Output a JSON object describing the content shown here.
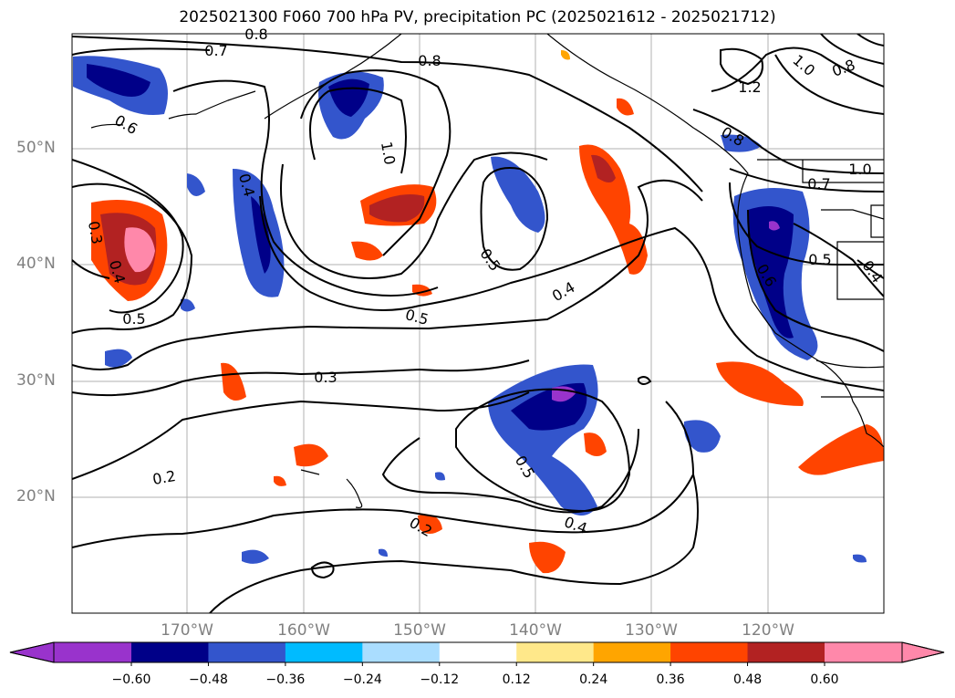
{
  "title": "2025021300 F060 700 hPa PV, precipitation PC (2025021612 - 2025021712)",
  "latitude_labels": [
    "50°N",
    "40°N",
    "30°N",
    "20°N"
  ],
  "longitude_labels": [
    "170°W",
    "160°W",
    "150°W",
    "140°W",
    "130°W",
    "120°W"
  ],
  "colorbar": {
    "ticks": [
      "−0.60",
      "−0.48",
      "−0.36",
      "−0.24",
      "−0.12",
      "0.12",
      "0.24",
      "0.36",
      "0.48",
      "0.60"
    ],
    "colors": [
      "#9933cc",
      "#000088",
      "#3355cc",
      "#00bbff",
      "#aaddff",
      "#ffffff",
      "#ffe88a",
      "#ffa500",
      "#ff4400",
      "#b22222",
      "#ff88aa"
    ]
  },
  "contour_labels": [
    {
      "text": "0.7"
    },
    {
      "text": "0.8"
    },
    {
      "text": "0.8"
    },
    {
      "text": "1.0"
    },
    {
      "text": "0.8"
    },
    {
      "text": "1.2"
    },
    {
      "text": "0.6"
    },
    {
      "text": "1.0"
    },
    {
      "text": "0.4"
    },
    {
      "text": "0.8"
    },
    {
      "text": "1.0"
    },
    {
      "text": "0.7"
    },
    {
      "text": "0.3"
    },
    {
      "text": "0.4"
    },
    {
      "text": "0.5"
    },
    {
      "text": "0.5"
    },
    {
      "text": "0.5"
    },
    {
      "text": "0.4"
    },
    {
      "text": "0.6"
    },
    {
      "text": "0.5"
    },
    {
      "text": "0.4"
    },
    {
      "text": "0.3"
    },
    {
      "text": "0.2"
    },
    {
      "text": "0.5"
    },
    {
      "text": "0.2"
    },
    {
      "text": "0.4"
    }
  ],
  "precip_colors": {
    "strong_neg": "#9933cc",
    "neg1": "#000088",
    "neg2": "#3355cc",
    "neg3": "#00bbff",
    "pos1": "#ffe88a",
    "pos2": "#ffa500",
    "pos3": "#ff4400",
    "pos4": "#b22222",
    "pos5": "#ff88aa"
  }
}
